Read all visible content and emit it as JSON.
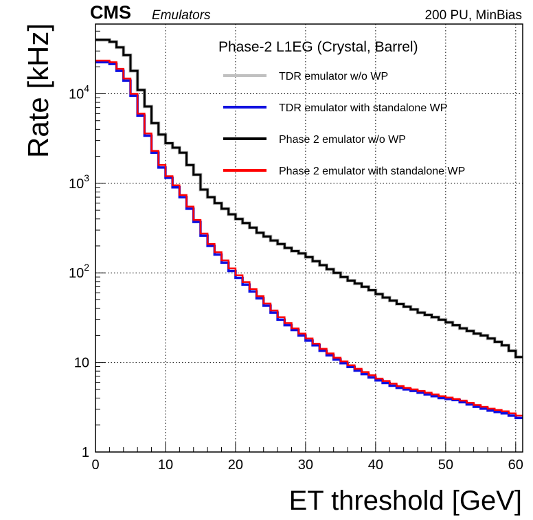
{
  "header": {
    "experiment": "CMS",
    "subtitle": "Emulators",
    "conditions": "200 PU, MinBias"
  },
  "chart_data": {
    "type": "line",
    "title": "Phase-2 L1EG (Crystal, Barrel)",
    "xlabel": "ET threshold [GeV]",
    "ylabel": "Rate [kHz]",
    "xlim": [
      0,
      61
    ],
    "ylim": [
      1,
      60000
    ],
    "yscale": "log",
    "grid": true,
    "legend_position": "top-right",
    "x_ticks": [
      "0",
      "10",
      "20",
      "30",
      "40",
      "50",
      "60"
    ],
    "y_ticks": [
      {
        "value": 1,
        "base": "1",
        "exp": ""
      },
      {
        "value": 10,
        "base": "10",
        "exp": ""
      },
      {
        "value": 100,
        "base": "10",
        "exp": "2"
      },
      {
        "value": 1000,
        "base": "10",
        "exp": "3"
      },
      {
        "value": 10000,
        "base": "10",
        "exp": "4"
      }
    ],
    "x": [
      0,
      1,
      2,
      3,
      4,
      5,
      6,
      7,
      8,
      9,
      10,
      11,
      12,
      13,
      14,
      15,
      16,
      17,
      18,
      19,
      20,
      21,
      22,
      23,
      24,
      25,
      26,
      27,
      28,
      29,
      30,
      31,
      32,
      33,
      34,
      35,
      36,
      37,
      38,
      39,
      40,
      41,
      42,
      43,
      44,
      45,
      46,
      47,
      48,
      49,
      50,
      51,
      52,
      53,
      54,
      55,
      56,
      57,
      58,
      59,
      60
    ],
    "series": [
      {
        "name": "TDR emulator w/o WP",
        "color": "#c0c0c0",
        "values": [
          40000,
          40000,
          38000,
          33000,
          27000,
          18000,
          11000,
          7200,
          4700,
          3500,
          2800,
          2500,
          2200,
          1600,
          1250,
          850,
          700,
          600,
          520,
          450,
          400,
          360,
          320,
          280,
          255,
          230,
          210,
          190,
          175,
          165,
          150,
          135,
          122,
          110,
          100,
          90,
          82,
          76,
          70,
          64,
          58,
          53,
          49,
          45,
          42,
          39,
          36,
          34,
          32,
          30,
          28,
          26,
          24,
          22.5,
          21,
          20,
          18.5,
          17,
          15.5,
          13.5,
          11.5
        ]
      },
      {
        "name": "TDR emulator with standalone WP",
        "color": "#1010e0",
        "values": [
          22500,
          22500,
          21500,
          18000,
          14000,
          9500,
          5700,
          3400,
          2200,
          1500,
          1150,
          900,
          700,
          520,
          370,
          260,
          200,
          160,
          130,
          105,
          88,
          74,
          62,
          52,
          43,
          36,
          30,
          26,
          23,
          20,
          17.5,
          15.5,
          13.5,
          12,
          10.8,
          9.8,
          8.9,
          8.1,
          7.4,
          6.8,
          6.3,
          5.9,
          5.5,
          5.2,
          5,
          4.8,
          4.6,
          4.4,
          4.2,
          4,
          3.9,
          3.8,
          3.6,
          3.4,
          3.2,
          3.05,
          2.9,
          2.8,
          2.7,
          2.55,
          2.4
        ]
      },
      {
        "name": "Phase 2 emulator w/o WP",
        "color": "#000000",
        "values": [
          40000,
          40000,
          38000,
          33000,
          27000,
          18000,
          11000,
          7200,
          4700,
          3500,
          2800,
          2500,
          2200,
          1600,
          1250,
          850,
          700,
          600,
          520,
          450,
          400,
          360,
          320,
          280,
          255,
          230,
          210,
          190,
          175,
          165,
          150,
          135,
          122,
          110,
          100,
          90,
          82,
          76,
          70,
          64,
          58,
          53,
          49,
          45,
          42,
          39,
          36,
          34,
          32,
          30,
          28,
          26,
          24,
          22.5,
          21,
          20,
          18.5,
          17,
          15.5,
          13.5,
          11.5
        ]
      },
      {
        "name": "Phase 2 emulator with standalone WP",
        "color": "#ff0000",
        "values": [
          23500,
          23500,
          22500,
          19000,
          14800,
          10000,
          6000,
          3600,
          2300,
          1600,
          1200,
          950,
          740,
          550,
          390,
          275,
          210,
          170,
          138,
          112,
          94,
          79,
          66,
          55,
          45.5,
          38,
          32,
          27.5,
          24,
          21,
          18.5,
          16.2,
          14.2,
          12.6,
          11.3,
          10.3,
          9.3,
          8.5,
          7.8,
          7.2,
          6.6,
          6.2,
          5.8,
          5.45,
          5.2,
          5,
          4.8,
          4.6,
          4.4,
          4.2,
          4.05,
          3.9,
          3.75,
          3.55,
          3.35,
          3.2,
          3.05,
          2.95,
          2.85,
          2.7,
          2.55
        ]
      }
    ]
  }
}
